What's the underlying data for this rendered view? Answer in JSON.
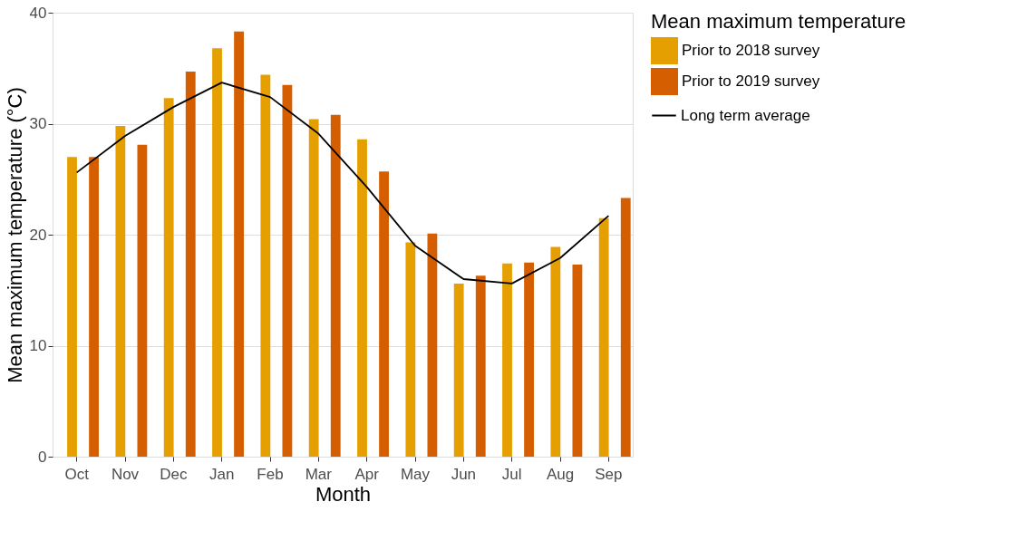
{
  "chart_data": {
    "type": "bar",
    "xlabel": "Month",
    "ylabel": "Mean maximum temperature (°C)",
    "legend_title": "Mean maximum temperature",
    "categories": [
      "Oct",
      "Nov",
      "Dec",
      "Jan",
      "Feb",
      "Mar",
      "Apr",
      "May",
      "Jun",
      "Jul",
      "Aug",
      "Sep"
    ],
    "series": [
      {
        "name": "Prior to 2018 survey",
        "color": "#e69f00",
        "values": [
          27.0,
          29.8,
          32.3,
          36.8,
          34.4,
          30.4,
          28.6,
          19.3,
          15.6,
          17.4,
          18.9,
          21.5
        ]
      },
      {
        "name": "Prior to 2019 survey",
        "color": "#d55e00",
        "values": [
          27.0,
          28.1,
          34.7,
          38.3,
          33.5,
          30.8,
          25.7,
          20.1,
          16.3,
          17.5,
          17.3,
          23.3
        ]
      },
      {
        "name": "Long term average",
        "type": "line",
        "color": "#000000",
        "values": [
          25.6,
          28.9,
          31.5,
          33.7,
          32.4,
          29.1,
          24.3,
          19.0,
          16.0,
          15.6,
          17.9,
          21.7
        ]
      }
    ],
    "ylim": [
      0,
      40
    ],
    "yticks": [
      0,
      10,
      20,
      30,
      40
    ],
    "grid": "y",
    "legend": "right"
  }
}
